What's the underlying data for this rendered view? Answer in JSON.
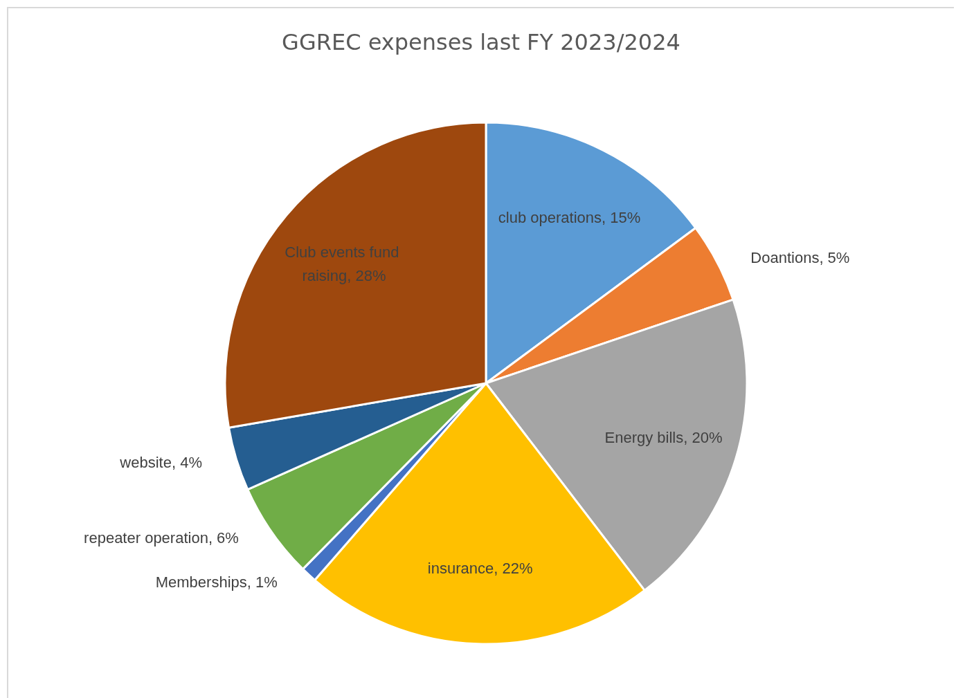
{
  "chart_data": {
    "type": "pie",
    "title": "GGREC expenses last FY 2023/2024",
    "categories": [
      "club operations",
      "Doantions",
      "Energy bills",
      "insurance",
      "Memberships",
      "repeater operation",
      "website",
      "Club events fund raising"
    ],
    "values": [
      15,
      5,
      20,
      22,
      1,
      6,
      4,
      28
    ],
    "value_labels": [
      "15%",
      "5%",
      "20%",
      "22%",
      "1%",
      "6%",
      "4%",
      "28%"
    ],
    "colors": [
      "#5b9bd5",
      "#ed7d31",
      "#a5a5a5",
      "#ffc000",
      "#4472c4",
      "#70ad47",
      "#255e91",
      "#9e480e"
    ],
    "legend": false
  }
}
